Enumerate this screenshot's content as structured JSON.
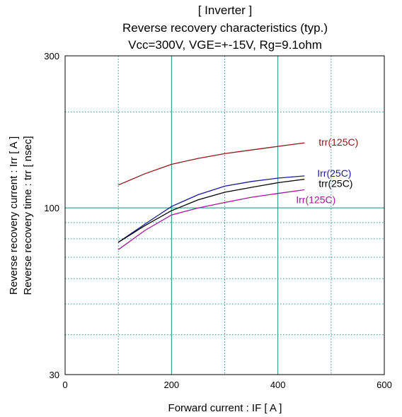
{
  "chart_data": {
    "type": "line",
    "title_lines": [
      "[ Inverter ]",
      "Reverse recovery characteristics  (typ.)",
      "Vcc=300V, VGE=+-15V, Rg=9.1ohm"
    ],
    "xlabel": "Forward current  :  IF  [ A ]",
    "ylabel_lines": [
      "Reverse recovery current  :  Irr  [ A ]",
      "Reverse recovery time  :  trr  [ nsec]"
    ],
    "xlim": [
      0,
      600
    ],
    "ylim": [
      30,
      300
    ],
    "yscale": "log",
    "x_ticks": [
      "0",
      "200",
      "400",
      "600"
    ],
    "y_ticks": [
      "30",
      "100",
      "300"
    ],
    "grid": true,
    "series": [
      {
        "name": "trr(125C)",
        "color": "#8b1a1a",
        "x": [
          100,
          150,
          200,
          250,
          300,
          350,
          400,
          450
        ],
        "y": [
          118,
          128,
          137,
          143,
          148,
          152,
          156,
          160
        ]
      },
      {
        "name": "Irr(25C)",
        "color": "#1a1a99",
        "x": [
          100,
          150,
          200,
          250,
          300,
          350,
          400,
          450
        ],
        "y": [
          78,
          89,
          101,
          110,
          117,
          121,
          124,
          126
        ]
      },
      {
        "name": "trr(25C)",
        "color": "#000000",
        "x": [
          100,
          150,
          200,
          250,
          300,
          350,
          400,
          450
        ],
        "y": [
          78,
          88,
          98,
          106,
          112,
          116,
          120,
          123
        ]
      },
      {
        "name": "Irr(125C)",
        "color": "#a0189a",
        "x": [
          100,
          150,
          200,
          250,
          300,
          350,
          400,
          450
        ],
        "y": [
          74,
          85,
          95,
          100,
          104,
          108,
          111,
          114
        ]
      }
    ]
  }
}
